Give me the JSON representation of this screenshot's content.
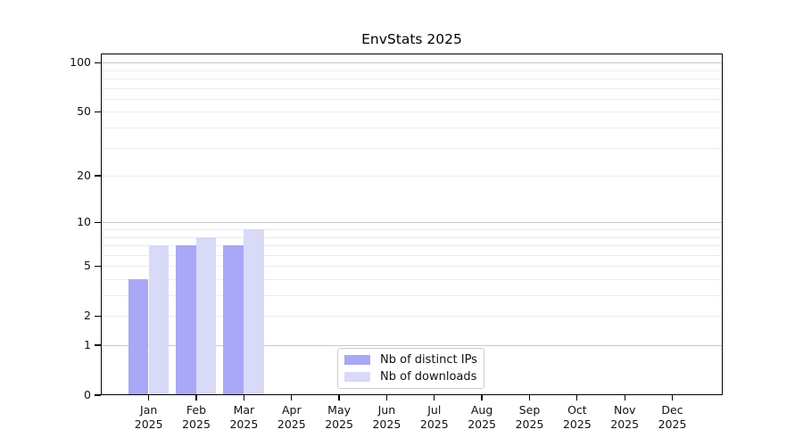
{
  "chart_data": {
    "type": "bar",
    "title": "EnvStats 2025",
    "categories": [
      "Jan",
      "Feb",
      "Mar",
      "Apr",
      "May",
      "Jun",
      "Jul",
      "Aug",
      "Sep",
      "Oct",
      "Nov",
      "Dec"
    ],
    "category_year": "2025",
    "series": [
      {
        "name": "Nb of distinct IPs",
        "color": "#a8a8f6",
        "values": [
          4,
          7,
          7,
          null,
          null,
          null,
          null,
          null,
          null,
          null,
          null,
          null
        ]
      },
      {
        "name": "Nb of downloads",
        "color": "#d9d9f8",
        "values": [
          7,
          8,
          9,
          null,
          null,
          null,
          null,
          null,
          null,
          null,
          null,
          null
        ]
      }
    ],
    "yscale": "log1p",
    "yticks": [
      0,
      1,
      2,
      5,
      10,
      20,
      50,
      100
    ],
    "major_gridlines": [
      1,
      10,
      100
    ],
    "minor_gridlines": [
      2,
      3,
      4,
      5,
      6,
      7,
      8,
      9,
      20,
      30,
      40,
      50,
      60,
      70,
      80,
      90
    ],
    "ylim": [
      0,
      113
    ],
    "xlabel": "",
    "ylabel": "",
    "grid": "horizontal",
    "legend_position": "lower center"
  },
  "colors": {
    "background": "#ffffff",
    "axis_spine": "#000000",
    "text": "#111111",
    "major_grid": "#c8c8c8",
    "minor_grid": "#ececec",
    "legend_border": "#cccccc",
    "series_distinct_ips": "#a8a8f6",
    "series_downloads": "#d9d9f8"
  }
}
